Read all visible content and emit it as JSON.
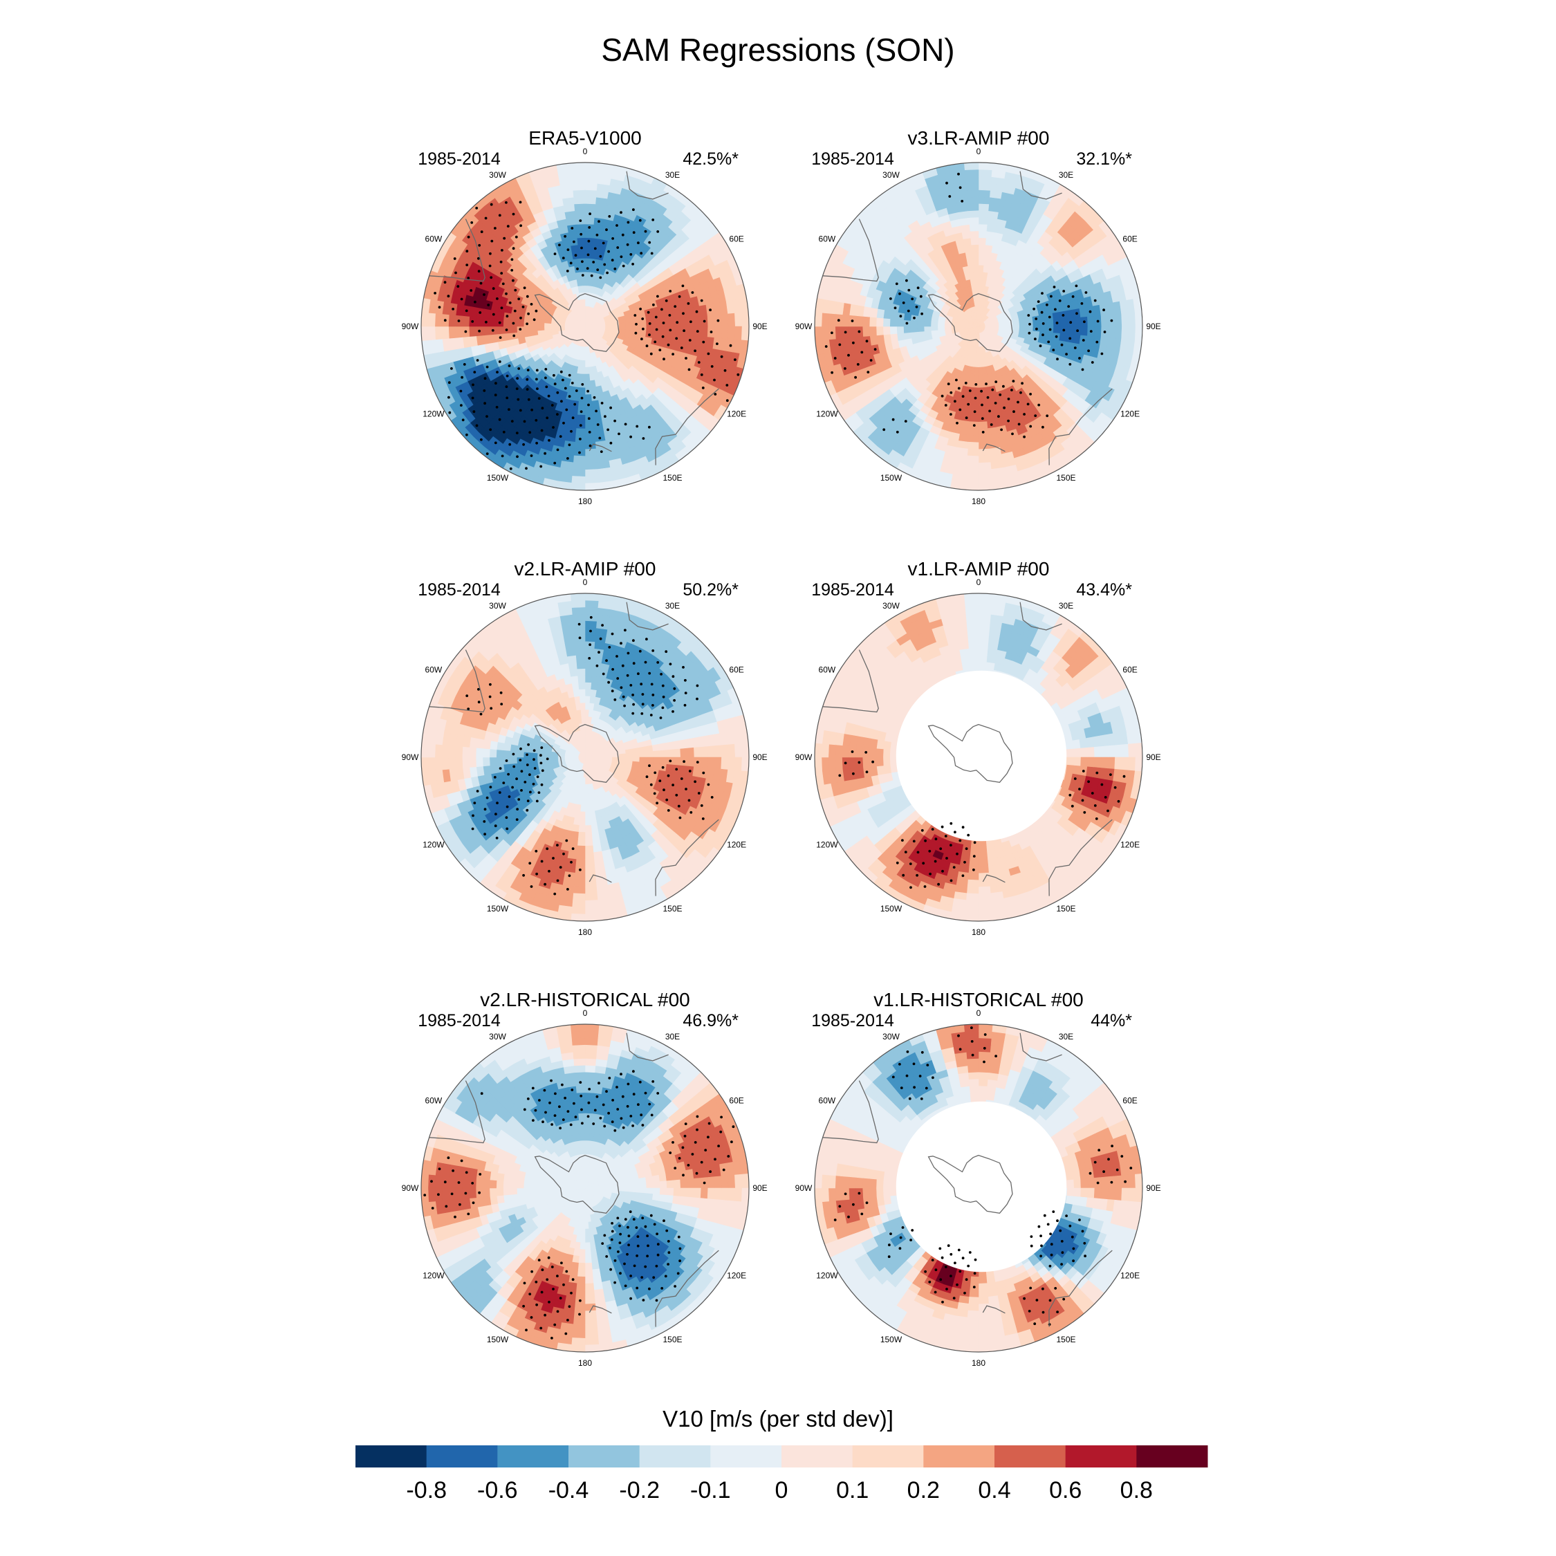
{
  "chart_data": {
    "type": "heatmap",
    "title": "SAM Regressions (SON)",
    "variable_label": "V10 [m/s (per std dev)]",
    "colorbar": {
      "levels": [
        -0.8,
        -0.6,
        -0.4,
        -0.2,
        -0.1,
        0,
        0.1,
        0.2,
        0.4,
        0.6,
        0.8
      ],
      "tick_labels": [
        "-0.8",
        "-0.6",
        "-0.4",
        "-0.2",
        "-0.1",
        "0",
        "0.1",
        "0.2",
        "0.4",
        "0.6",
        "0.8"
      ],
      "colors": [
        "#053061",
        "#2166ac",
        "#4393c3",
        "#92c5de",
        "#d1e5f0",
        "#e6eff6",
        "#fbe4dc",
        "#fddbc7",
        "#f4a582",
        "#d6604d",
        "#b2182b",
        "#67001f"
      ]
    },
    "longitude_labels": [
      "0",
      "30E",
      "60E",
      "90E",
      "120E",
      "150E",
      "180",
      "150W",
      "120W",
      "90W",
      "60W",
      "30W"
    ],
    "panels": [
      {
        "title": "ERA5-V1000",
        "period": "1985-2014",
        "variance": "42.5%*",
        "masked_center": false
      },
      {
        "title": "v3.LR-AMIP  #00",
        "period": "1985-2014",
        "variance": "32.1%*",
        "masked_center": false
      },
      {
        "title": "v2.LR-AMIP  #00",
        "period": "1985-2014",
        "variance": "50.2%*",
        "masked_center": false
      },
      {
        "title": "v1.LR-AMIP  #00",
        "period": "1985-2014",
        "variance": "43.4%*",
        "masked_center": true
      },
      {
        "title": "v2.LR-HISTORICAL  #00",
        "period": "1985-2014",
        "variance": "46.9%*",
        "masked_center": false
      },
      {
        "title": "v1.LR-HISTORICAL  #00",
        "period": "1985-2014",
        "variance": "44%*",
        "masked_center": true
      }
    ],
    "blob_fields": [
      [
        [
          -135,
          0.72,
          0.6,
          -0.9
        ],
        [
          -115,
          0.72,
          0.5,
          -0.6
        ],
        [
          -75,
          0.72,
          0.4,
          0.5
        ],
        [
          -120,
          0.95,
          0.3,
          0.3
        ],
        [
          -35,
          0.85,
          0.35,
          0.4
        ],
        [
          -50,
          0.8,
          0.35,
          0.35
        ],
        [
          30,
          0.55,
          0.55,
          -0.6
        ],
        [
          80,
          0.52,
          0.6,
          0.6
        ],
        [
          110,
          0.92,
          0.35,
          0.5
        ],
        [
          -95,
          0.55,
          0.55,
          0.7
        ],
        [
          -10,
          0.45,
          0.35,
          -0.5
        ],
        [
          -170,
          0.6,
          0.5,
          -0.5
        ],
        [
          150,
          0.75,
          0.4,
          -0.3
        ],
        [
          -30,
          0.3,
          0.3,
          0.2
        ]
      ],
      [
        [
          -75,
          0.45,
          0.4,
          -0.6
        ],
        [
          -45,
          0.2,
          0.4,
          0.3
        ],
        [
          90,
          0.55,
          0.5,
          -0.7
        ],
        [
          155,
          0.55,
          0.5,
          0.5
        ],
        [
          -100,
          0.75,
          0.45,
          0.6
        ],
        [
          -140,
          0.75,
          0.4,
          -0.4
        ],
        [
          -160,
          0.5,
          0.35,
          0.4
        ],
        [
          45,
          0.8,
          0.35,
          0.3
        ],
        [
          20,
          0.75,
          0.35,
          -0.3
        ],
        [
          -10,
          0.85,
          0.3,
          -0.4
        ],
        [
          120,
          0.85,
          0.3,
          -0.2
        ],
        [
          -20,
          0.5,
          0.3,
          0.2
        ]
      ],
      [
        [
          -120,
          0.6,
          0.5,
          -0.8
        ],
        [
          30,
          0.6,
          0.55,
          -0.5
        ],
        [
          0,
          0.8,
          0.3,
          -0.3
        ],
        [
          -60,
          0.7,
          0.4,
          0.4
        ],
        [
          -100,
          0.8,
          0.35,
          0.4
        ],
        [
          -160,
          0.65,
          0.5,
          0.6
        ],
        [
          110,
          0.55,
          0.6,
          0.6
        ],
        [
          150,
          0.5,
          0.45,
          -0.5
        ],
        [
          70,
          0.55,
          0.4,
          -0.3
        ],
        [
          60,
          0.85,
          0.3,
          -0.2
        ],
        [
          -30,
          0.3,
          0.3,
          0.3
        ],
        [
          -80,
          0.3,
          0.3,
          -0.3
        ]
      ],
      [
        [
          -95,
          0.75,
          0.35,
          0.5
        ],
        [
          -150,
          0.7,
          0.4,
          0.6
        ],
        [
          -165,
          0.6,
          0.35,
          0.4
        ],
        [
          105,
          0.75,
          0.35,
          0.7
        ],
        [
          20,
          0.75,
          0.35,
          -0.3
        ],
        [
          -25,
          0.85,
          0.3,
          0.3
        ],
        [
          45,
          0.85,
          0.3,
          0.3
        ],
        [
          80,
          0.75,
          0.3,
          -0.3
        ],
        [
          -120,
          0.6,
          0.4,
          -0.3
        ],
        [
          160,
          0.75,
          0.3,
          0.2
        ]
      ],
      [
        [
          -90,
          0.8,
          0.4,
          0.6
        ],
        [
          -135,
          0.85,
          0.4,
          -0.4
        ],
        [
          -160,
          0.7,
          0.5,
          0.7
        ],
        [
          70,
          0.75,
          0.5,
          0.6
        ],
        [
          140,
          0.55,
          0.5,
          -0.8
        ],
        [
          30,
          0.6,
          0.45,
          -0.6
        ],
        [
          -20,
          0.55,
          0.4,
          -0.5
        ],
        [
          0,
          0.9,
          0.3,
          0.3
        ],
        [
          -50,
          0.85,
          0.35,
          -0.3
        ],
        [
          -120,
          0.5,
          0.3,
          -0.3
        ]
      ],
      [
        [
          -160,
          0.55,
          0.3,
          0.95
        ],
        [
          -100,
          0.75,
          0.35,
          0.6
        ],
        [
          -120,
          0.6,
          0.4,
          -0.5
        ],
        [
          -5,
          0.9,
          0.3,
          0.5
        ],
        [
          -30,
          0.8,
          0.35,
          -0.6
        ],
        [
          80,
          0.8,
          0.35,
          0.5
        ],
        [
          125,
          0.6,
          0.35,
          -0.8
        ],
        [
          150,
          0.8,
          0.35,
          0.6
        ],
        [
          30,
          0.7,
          0.3,
          -0.3
        ],
        [
          10,
          0.8,
          0.3,
          0.2
        ]
      ]
    ]
  }
}
